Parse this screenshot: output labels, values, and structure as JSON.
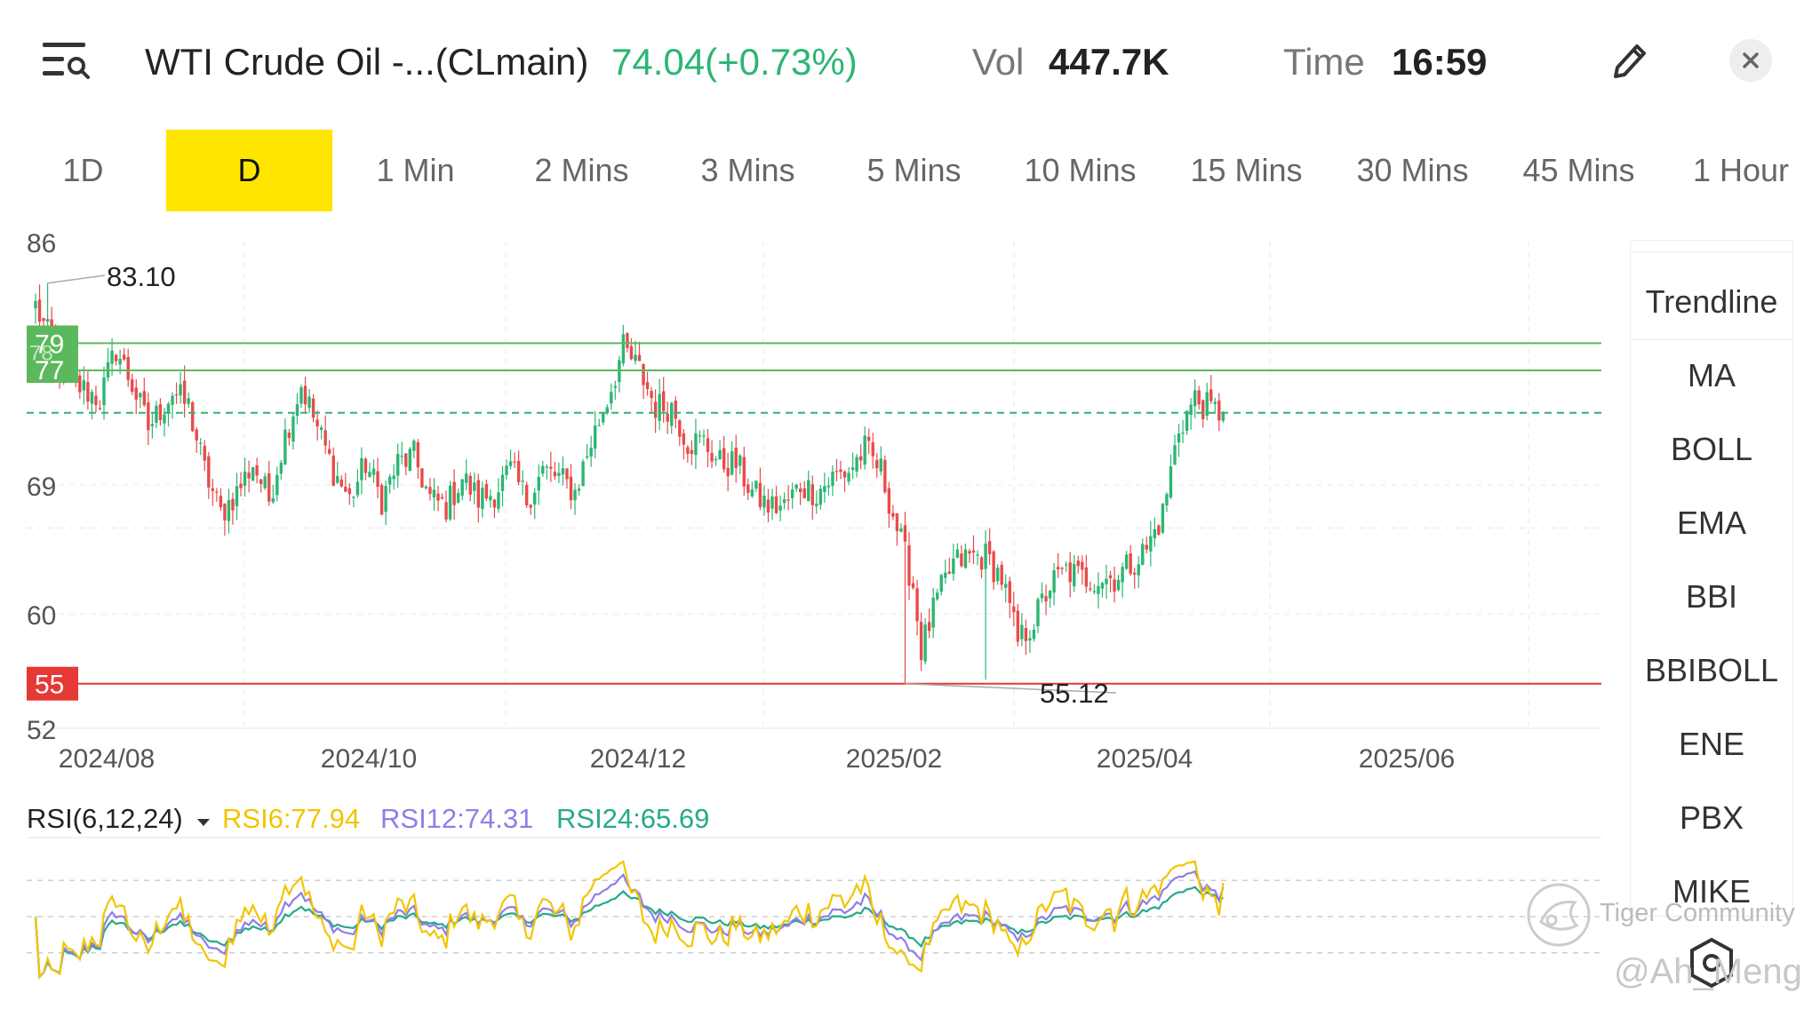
{
  "header": {
    "title": "WTI Crude Oil -...(CLmain)",
    "price_change": "74.04(+0.73%)",
    "vol_label": "Vol",
    "vol_value": "447.7K",
    "time_label": "Time",
    "time_value": "16:59",
    "icons": [
      "list-search-icon",
      "pencil-icon",
      "close-icon"
    ]
  },
  "tabs": [
    "1D",
    "D",
    "1 Min",
    "2 Mins",
    "3 Mins",
    "5 Mins",
    "10 Mins",
    "15 Mins",
    "30 Mins",
    "45 Mins",
    "1 Hour"
  ],
  "active_tab": "D",
  "indicators": [
    "Trendline",
    "MA",
    "BOLL",
    "EMA",
    "BBI",
    "BBIBOLL",
    "ENE",
    "PBX",
    "MIKE"
  ],
  "watermark": {
    "brand": "Tiger Community",
    "user": "@Ah_Meng"
  },
  "colors": {
    "up": "#2bb673",
    "down": "#e84b4b",
    "active_tab": "#ffe600",
    "resistance": "#5cb85c",
    "support": "#e53935",
    "rsi6": "#f2c500",
    "rsi12": "#8f7ee8",
    "rsi24": "#26a98b"
  },
  "chart_data": {
    "type": "candlestick",
    "x_labels": [
      "2024/08",
      "2024/10",
      "2024/12",
      "2025/02",
      "2025/04",
      "2025/06"
    ],
    "y_ticks": [
      86,
      69,
      60,
      52
    ],
    "ylim": [
      52,
      86
    ],
    "annotations": {
      "high": "83.10",
      "low": "55.12",
      "high_value": 83.1,
      "low_value": 55.12
    },
    "lines": [
      {
        "type": "resistance",
        "label": "79",
        "value": 78.9
      },
      {
        "type": "resistance",
        "label": "77",
        "value": 77.0
      },
      {
        "type": "support",
        "label": "55",
        "value": 55.12
      }
    ],
    "current_price": 74.04,
    "close_path": [
      [
        0,
        81.5
      ],
      [
        6,
        77.5
      ],
      [
        10,
        76
      ],
      [
        16,
        75
      ],
      [
        20,
        78.5
      ],
      [
        24,
        76
      ],
      [
        28,
        73
      ],
      [
        34,
        75.5
      ],
      [
        38,
        74.5
      ],
      [
        42,
        70
      ],
      [
        46,
        67
      ],
      [
        50,
        68.5
      ],
      [
        54,
        70.5
      ],
      [
        58,
        68
      ],
      [
        62,
        72.5
      ],
      [
        66,
        76
      ],
      [
        70,
        73
      ],
      [
        74,
        70
      ],
      [
        78,
        68
      ],
      [
        82,
        70.5
      ],
      [
        86,
        68
      ],
      [
        90,
        70.5
      ],
      [
        94,
        71
      ],
      [
        98,
        68
      ],
      [
        102,
        67.5
      ],
      [
        106,
        69.5
      ],
      [
        110,
        68
      ],
      [
        114,
        68.5
      ],
      [
        118,
        70
      ],
      [
        122,
        68
      ],
      [
        126,
        70
      ],
      [
        130,
        69.5
      ],
      [
        134,
        68.5
      ],
      [
        138,
        72
      ],
      [
        142,
        75
      ],
      [
        146,
        78.5
      ],
      [
        150,
        77
      ],
      [
        154,
        74.5
      ],
      [
        158,
        74.5
      ],
      [
        162,
        72
      ],
      [
        166,
        72
      ],
      [
        170,
        70.5
      ],
      [
        174,
        70.5
      ],
      [
        178,
        68.5
      ],
      [
        182,
        67.5
      ],
      [
        186,
        67.5
      ],
      [
        190,
        69
      ],
      [
        194,
        68.5
      ],
      [
        198,
        69.5
      ],
      [
        202,
        70
      ],
      [
        206,
        71.5
      ],
      [
        210,
        70
      ],
      [
        214,
        66
      ],
      [
        218,
        62
      ],
      [
        220,
        57.5
      ],
      [
        224,
        61
      ],
      [
        228,
        63.5
      ],
      [
        232,
        64
      ],
      [
        236,
        64
      ],
      [
        240,
        62.5
      ],
      [
        244,
        58
      ],
      [
        248,
        59.5
      ],
      [
        252,
        62
      ],
      [
        256,
        63
      ],
      [
        260,
        62.5
      ],
      [
        264,
        62.5
      ],
      [
        268,
        62.5
      ],
      [
        272,
        63.5
      ],
      [
        276,
        64.5
      ],
      [
        280,
        67
      ],
      [
        284,
        73
      ],
      [
        288,
        75
      ],
      [
        292,
        74.2
      ],
      [
        295,
        74.04
      ]
    ],
    "rsi": {
      "label": "RSI(6,12,24)",
      "rsi6_label": "RSI6:77.94",
      "rsi12_label": "RSI12:74.31",
      "rsi24_label": "RSI24:65.69",
      "rsi6": 77.94,
      "rsi12": 74.31,
      "rsi24": 65.69,
      "levels": [
        80,
        50,
        20
      ]
    }
  }
}
